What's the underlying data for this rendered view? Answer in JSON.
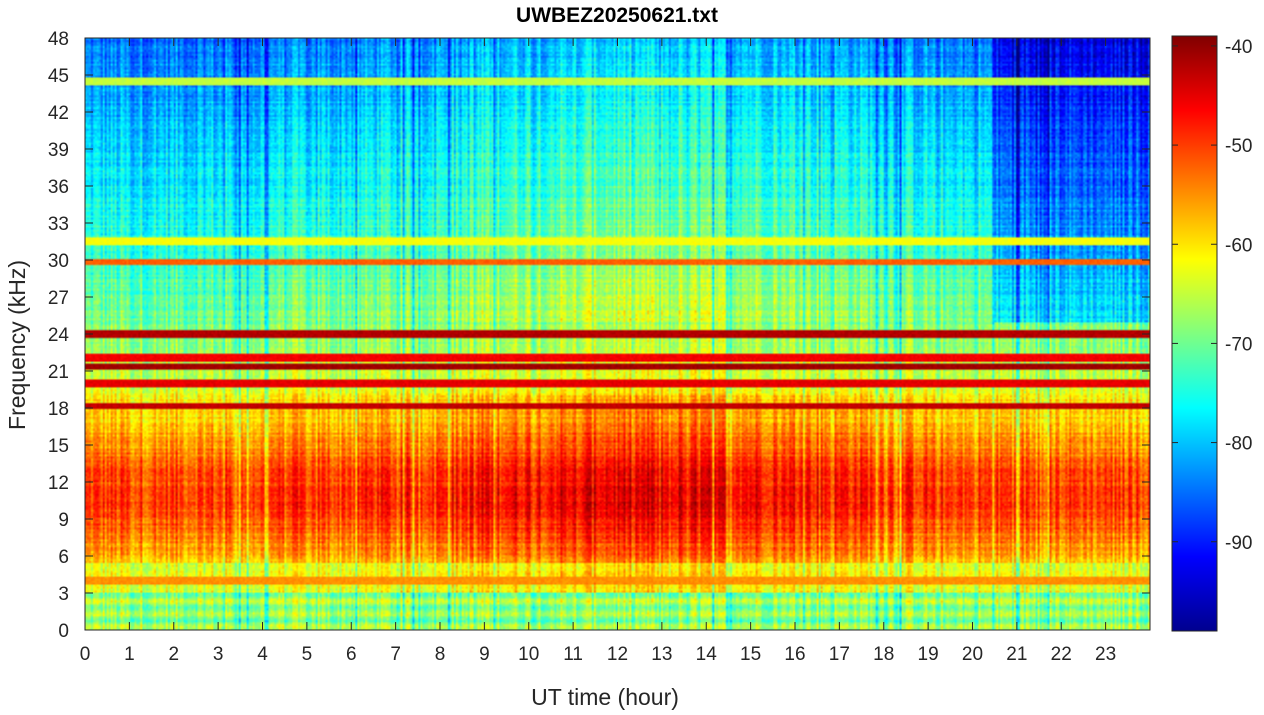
{
  "chart_data": {
    "type": "heatmap",
    "title": "UWBEZ20250621.txt",
    "xlabel": "UT time (hour)",
    "ylabel": "Frequency (kHz)",
    "xlim": [
      0,
      24
    ],
    "ylim": [
      0,
      48
    ],
    "x_ticks": [
      0,
      1,
      2,
      3,
      4,
      5,
      6,
      7,
      8,
      9,
      10,
      11,
      12,
      13,
      14,
      15,
      16,
      17,
      18,
      19,
      20,
      21,
      22,
      23
    ],
    "y_ticks": [
      0,
      3,
      6,
      9,
      12,
      15,
      18,
      21,
      24,
      27,
      30,
      33,
      36,
      39,
      42,
      45,
      48
    ],
    "colorbar": {
      "colormap": "jet",
      "clim": [
        -99,
        -39
      ],
      "ticks": [
        -40,
        -50,
        -60,
        -70,
        -80,
        -90
      ]
    },
    "spectral_lines_khz": [
      {
        "freq": 24.0,
        "level_db": -42
      },
      {
        "freq": 21.4,
        "level_db": -41
      },
      {
        "freq": 18.2,
        "level_db": -43
      },
      {
        "freq": 20.0,
        "level_db": -45
      },
      {
        "freq": 22.1,
        "level_db": -46
      },
      {
        "freq": 4.0,
        "level_db": -55
      },
      {
        "freq": 29.8,
        "level_db": -52
      },
      {
        "freq": 44.5,
        "level_db": -65
      },
      {
        "freq": 31.5,
        "level_db": -62
      }
    ]
  }
}
